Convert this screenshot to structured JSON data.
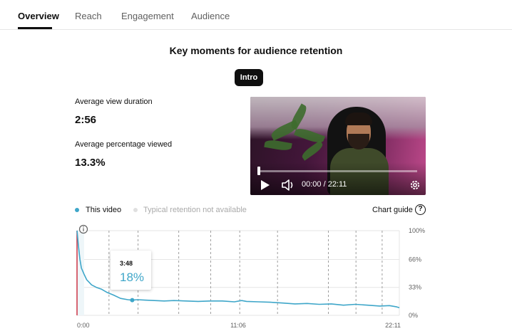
{
  "tabs": [
    {
      "label": "Overview",
      "active": true
    },
    {
      "label": "Reach",
      "active": false
    },
    {
      "label": "Engagement",
      "active": false
    },
    {
      "label": "Audience",
      "active": false
    }
  ],
  "section_title": "Key moments for audience retention",
  "chip_label": "Intro",
  "metrics": {
    "avg_view_duration_label": "Average view duration",
    "avg_view_duration_value": "2:56",
    "avg_pct_viewed_label": "Average percentage viewed",
    "avg_pct_viewed_value": "13.3%"
  },
  "video": {
    "time_display": "00:00 / 22:11",
    "playback_progress": 0.0,
    "icons": [
      "play-icon",
      "volume-icon",
      "settings-icon"
    ]
  },
  "legend": {
    "this_video": "This video",
    "typical": "Typical retention not available",
    "chart_guide": "Chart guide",
    "help_glyph": "?",
    "this_video_color": "#3ea6c9",
    "typical_color": "#e0e0e0"
  },
  "tooltip": {
    "time": "3:48",
    "value": "18%"
  },
  "colors": {
    "accent": "#3ea6c9",
    "intro_marker": "#cc3344"
  },
  "chart_data": {
    "type": "line",
    "title": "",
    "xlabel": "",
    "ylabel": "",
    "x_unit": "seconds",
    "xlim": [
      0,
      1331
    ],
    "ylim": [
      0,
      100
    ],
    "x_tick_labels": [
      "0:00",
      "11:06",
      "22:11"
    ],
    "y_tick_labels": [
      "100%",
      "66%",
      "33%",
      "0%"
    ],
    "y_ticks": [
      100,
      66,
      33,
      0
    ],
    "key_moment_x": [
      132,
      252,
      420,
      552,
      672,
      828,
      1038,
      1152,
      1260
    ],
    "series": [
      {
        "name": "This video",
        "x": [
          0,
          6,
          12,
          18,
          30,
          40,
          50,
          60,
          80,
          100,
          125,
          150,
          180,
          210,
          228,
          250,
          280,
          320,
          360,
          400,
          450,
          500,
          550,
          600,
          650,
          680,
          700,
          750,
          800,
          850,
          900,
          950,
          1000,
          1050,
          1100,
          1150,
          1200,
          1250,
          1290,
          1320,
          1331
        ],
        "y": [
          100,
          82,
          66,
          56,
          48,
          42,
          39,
          36,
          33,
          31,
          27,
          24,
          20,
          18.5,
          18,
          18.5,
          18,
          17.5,
          17,
          17.5,
          17,
          16.5,
          17,
          17,
          16,
          17.5,
          16.5,
          16,
          15.5,
          14.5,
          13.5,
          14,
          13,
          13.5,
          12,
          13,
          12,
          11,
          11.5,
          10,
          9
        ]
      }
    ],
    "highlight_point": {
      "x": 228,
      "y": 18
    }
  }
}
